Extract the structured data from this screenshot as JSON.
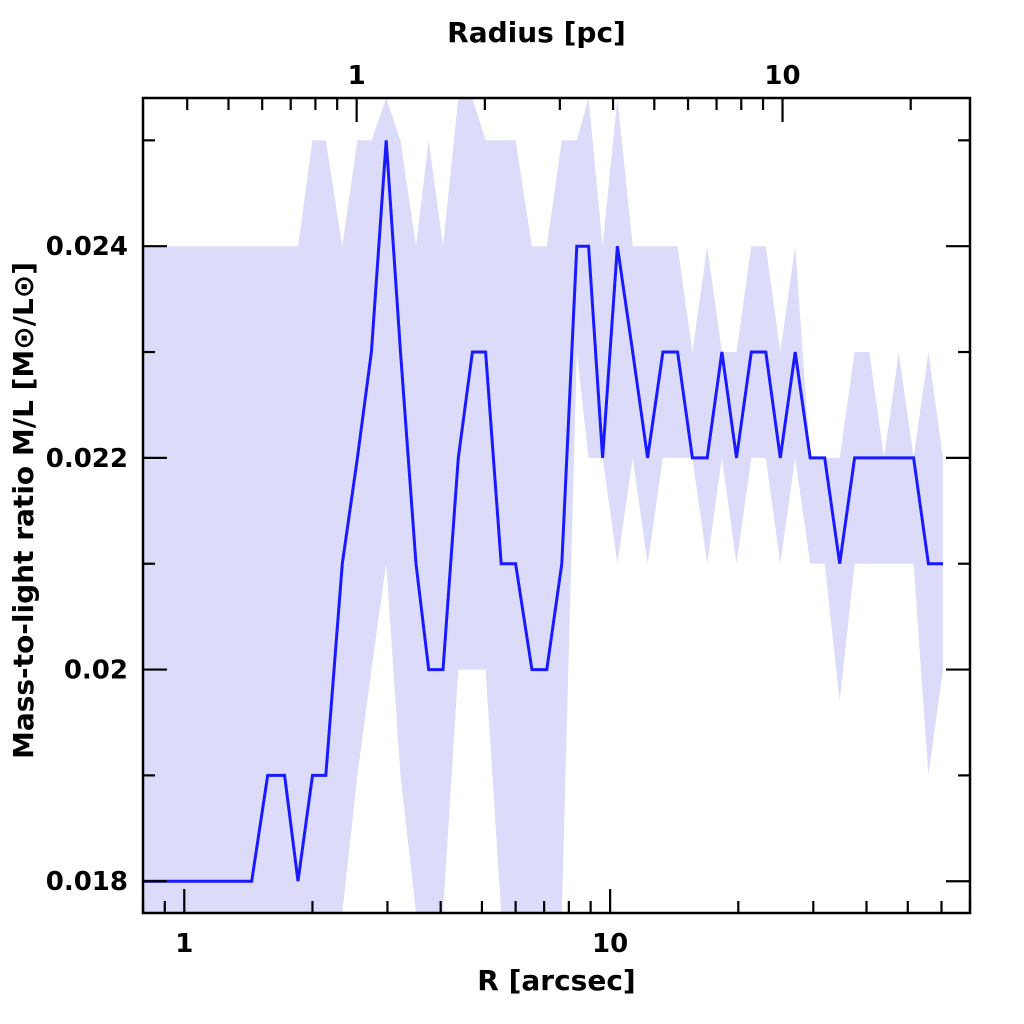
{
  "chart_data": {
    "type": "line",
    "x_scale": "log",
    "xlim": [
      0.8,
      70
    ],
    "ylim": [
      0.0177,
      0.0254
    ],
    "xlabel": "R [arcsec]",
    "ylabel": "Mass-to-light ratio M/L [M⊙/L⊙]",
    "top_axis_label": "Radius [pc]",
    "x_tick_labels": [
      {
        "value": 1,
        "label": "1"
      },
      {
        "value": 10,
        "label": "10"
      }
    ],
    "top_tick_labels": [
      {
        "value": 1,
        "label": "1",
        "at_arcsec": 2.54
      },
      {
        "value": 10,
        "label": "10",
        "at_arcsec": 25.4
      }
    ],
    "top_scale_arcsec_per_pc": 2.54,
    "y_tick_labels": [
      {
        "value": 0.018,
        "label": "0.018"
      },
      {
        "value": 0.02,
        "label": "0.02"
      },
      {
        "value": 0.022,
        "label": "0.022"
      },
      {
        "value": 0.024,
        "label": "0.024"
      }
    ],
    "grid": false,
    "colors": {
      "line": "#1a1aff",
      "band": "#dcdcfa",
      "axis": "#000000"
    },
    "series": [
      {
        "x": [
          0.8,
          1.44,
          1.57,
          1.72,
          1.85,
          2.0,
          2.15,
          2.35,
          2.55,
          2.75,
          2.98,
          3.22,
          3.5,
          3.75,
          4.05,
          4.4,
          4.75,
          5.1,
          5.55,
          6.0,
          6.55,
          7.1,
          7.7,
          8.35,
          8.9,
          9.6,
          10.4,
          11.3,
          12.25,
          13.3,
          14.4,
          15.6,
          16.9,
          18.3,
          19.8,
          21.45,
          23.2,
          25.1,
          27.2,
          29.5,
          31.9,
          34.6,
          37.5,
          40.6,
          44,
          47.6,
          51.6,
          55.9,
          60.5
        ],
        "values": [
          0.018,
          0.018,
          0.019,
          0.019,
          0.018,
          0.019,
          0.019,
          0.021,
          0.022,
          0.023,
          0.025,
          0.023,
          0.021,
          0.02,
          0.02,
          0.022,
          0.023,
          0.023,
          0.021,
          0.021,
          0.02,
          0.02,
          0.021,
          0.024,
          0.024,
          0.022,
          0.024,
          0.023,
          0.022,
          0.023,
          0.023,
          0.022,
          0.022,
          0.023,
          0.022,
          0.023,
          0.023,
          0.022,
          0.023,
          0.022,
          0.022,
          0.021,
          0.022,
          0.022,
          0.022,
          0.022,
          0.022,
          0.021,
          0.021
        ],
        "band_upper": [
          0.024,
          0.024,
          0.024,
          0.024,
          0.024,
          0.025,
          0.025,
          0.024,
          0.025,
          0.025,
          0.026,
          0.025,
          0.024,
          0.025,
          0.024,
          0.026,
          0.026,
          0.025,
          0.025,
          0.025,
          0.024,
          0.024,
          0.025,
          0.025,
          0.026,
          0.024,
          0.026,
          0.024,
          0.024,
          0.024,
          0.024,
          0.023,
          0.024,
          0.023,
          0.023,
          0.024,
          0.024,
          0.023,
          0.024,
          0.022,
          0.022,
          0.022,
          0.023,
          0.023,
          0.022,
          0.023,
          0.022,
          0.023,
          0.022
        ],
        "band_lower": [
          0.0177,
          0.0177,
          0.0177,
          0.0177,
          0.0177,
          0.0177,
          0.0177,
          0.0177,
          0.019,
          0.02,
          0.021,
          0.019,
          0.0177,
          0.0177,
          0.0177,
          0.02,
          0.02,
          0.02,
          0.0177,
          0.0177,
          0.0177,
          0.0177,
          0.0177,
          0.023,
          0.022,
          0.022,
          0.021,
          0.022,
          0.021,
          0.022,
          0.022,
          0.022,
          0.021,
          0.022,
          0.021,
          0.022,
          0.022,
          0.021,
          0.022,
          0.021,
          0.021,
          0.0197,
          0.021,
          0.021,
          0.021,
          0.021,
          0.021,
          0.019,
          0.02
        ]
      }
    ]
  }
}
